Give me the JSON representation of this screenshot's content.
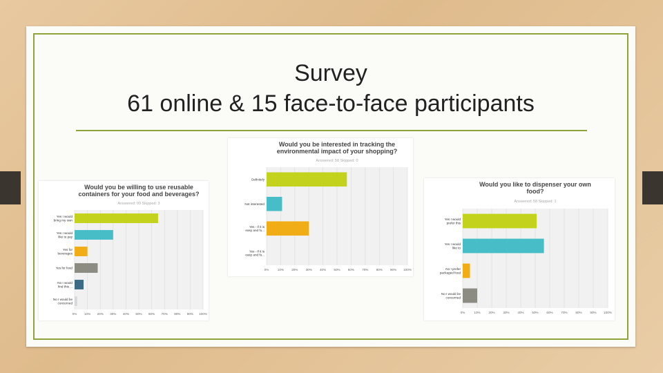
{
  "slide": {
    "title_line1": "Survey",
    "title_line2": "61 online & 15 face-to-face participants"
  },
  "colors": {
    "frame": "#8ea43a",
    "bar_green": "#c3d21d",
    "bar_teal": "#47bec7",
    "bar_orange": "#f0ad16",
    "bar_gray": "#8c8c82",
    "bar_navy": "#3d6b86",
    "bar_light": "#d5d9db"
  },
  "chart_data": [
    {
      "type": "bar",
      "orientation": "horizontal",
      "title_line1": "Would you be willing to use reusable",
      "title_line2": "containers for your food and beverages?",
      "subtitle": "Answered: 99 Skipped: 3",
      "categories": [
        "Yes I would bring my own",
        "Yes I would like to pay ...",
        "Yes for beverages",
        "Yes for food",
        "No I would find this ...",
        "No I would be concerned wi..."
      ],
      "values": [
        65,
        30,
        10,
        18,
        7,
        2
      ],
      "colors": [
        "#c3d21d",
        "#47bec7",
        "#f0ad16",
        "#8c8c82",
        "#3d6b86",
        "#d5d9db"
      ],
      "xlim": [
        0,
        100
      ],
      "ticks": [
        "0%",
        "10%",
        "20%",
        "30%",
        "40%",
        "50%",
        "60%",
        "70%",
        "80%",
        "90%",
        "100%"
      ]
    },
    {
      "type": "bar",
      "orientation": "horizontal",
      "title_line1": "Would you be interested in tracking the",
      "title_line2": "environmental impact of your shopping?",
      "subtitle": "Answered: 58 Skipped: 0",
      "categories": [
        "Definitely",
        "Not interested",
        "Yes - if it is easy and fu...",
        "Yes - if it is easy and fu..."
      ],
      "values": [
        57,
        11,
        30,
        0
      ],
      "colors": [
        "#c3d21d",
        "#47bec7",
        "#f0ad16",
        "#8c8c82"
      ],
      "xlim": [
        0,
        100
      ],
      "ticks": [
        "0%",
        "10%",
        "20%",
        "30%",
        "40%",
        "50%",
        "60%",
        "70%",
        "80%",
        "90%",
        "100%"
      ]
    },
    {
      "type": "bar",
      "orientation": "horizontal",
      "title_line1": "Would you like to dispenser your own",
      "title_line2": "food?",
      "subtitle": "Answered: 58 Skipped: 1",
      "categories": [
        "Yes I would prefer this ...",
        "Yes I would like to cust...",
        "No I prefer packaged food",
        "No I would be concerned wi..."
      ],
      "values": [
        51,
        56,
        5,
        10
      ],
      "colors": [
        "#c3d21d",
        "#47bec7",
        "#f0ad16",
        "#8c8c82"
      ],
      "xlim": [
        0,
        100
      ],
      "ticks": [
        "0%",
        "10%",
        "20%",
        "30%",
        "40%",
        "50%",
        "60%",
        "70%",
        "80%",
        "90%",
        "100%"
      ]
    }
  ]
}
